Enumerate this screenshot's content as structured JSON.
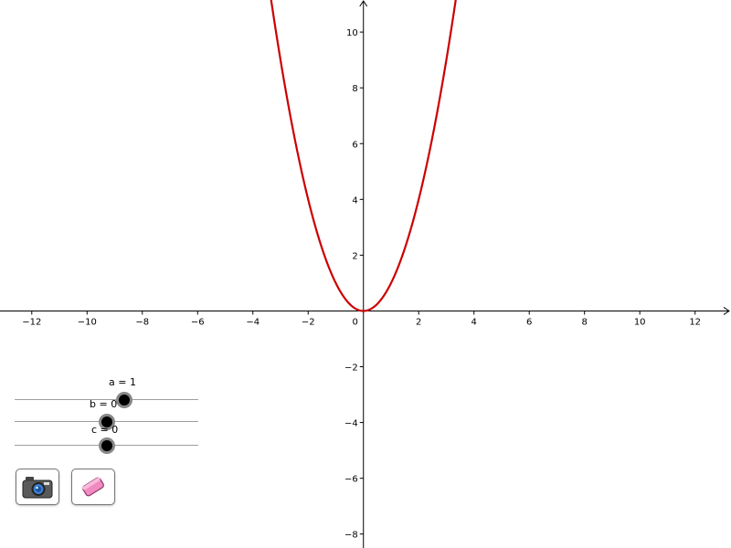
{
  "chart_data": {
    "type": "line",
    "function": "a*x^2 + b*x + c",
    "xlim": [
      -13.15,
      13.3
    ],
    "ylim": [
      -8.5,
      11.15
    ],
    "x_ticks": [
      -12,
      -10,
      -8,
      -6,
      -4,
      -2,
      0,
      2,
      4,
      6,
      8,
      10,
      12
    ],
    "y_ticks": [
      -8,
      -6,
      -4,
      -2,
      2,
      4,
      6,
      8,
      10
    ],
    "x_tick_labels": [
      "−12",
      "−10",
      "−8",
      "−6",
      "−4",
      "−2",
      "0",
      "2",
      "4",
      "6",
      "8",
      "10",
      "12"
    ],
    "y_tick_labels": [
      "−8",
      "−6",
      "−4",
      "−2",
      "2",
      "4",
      "6",
      "8",
      "10"
    ],
    "curve_color": "#cc0000",
    "grid": false
  },
  "sliders": [
    {
      "name": "a",
      "label": "a = 1",
      "value": 1,
      "min": -5,
      "max": 5
    },
    {
      "name": "b",
      "label": "b = 0",
      "value": 0,
      "min": -5,
      "max": 5
    },
    {
      "name": "c",
      "label": "c = 0",
      "value": 0,
      "min": -5,
      "max": 5
    }
  ],
  "toolbar": {
    "screenshot_icon": "camera-icon",
    "clear_icon": "eraser-icon"
  }
}
